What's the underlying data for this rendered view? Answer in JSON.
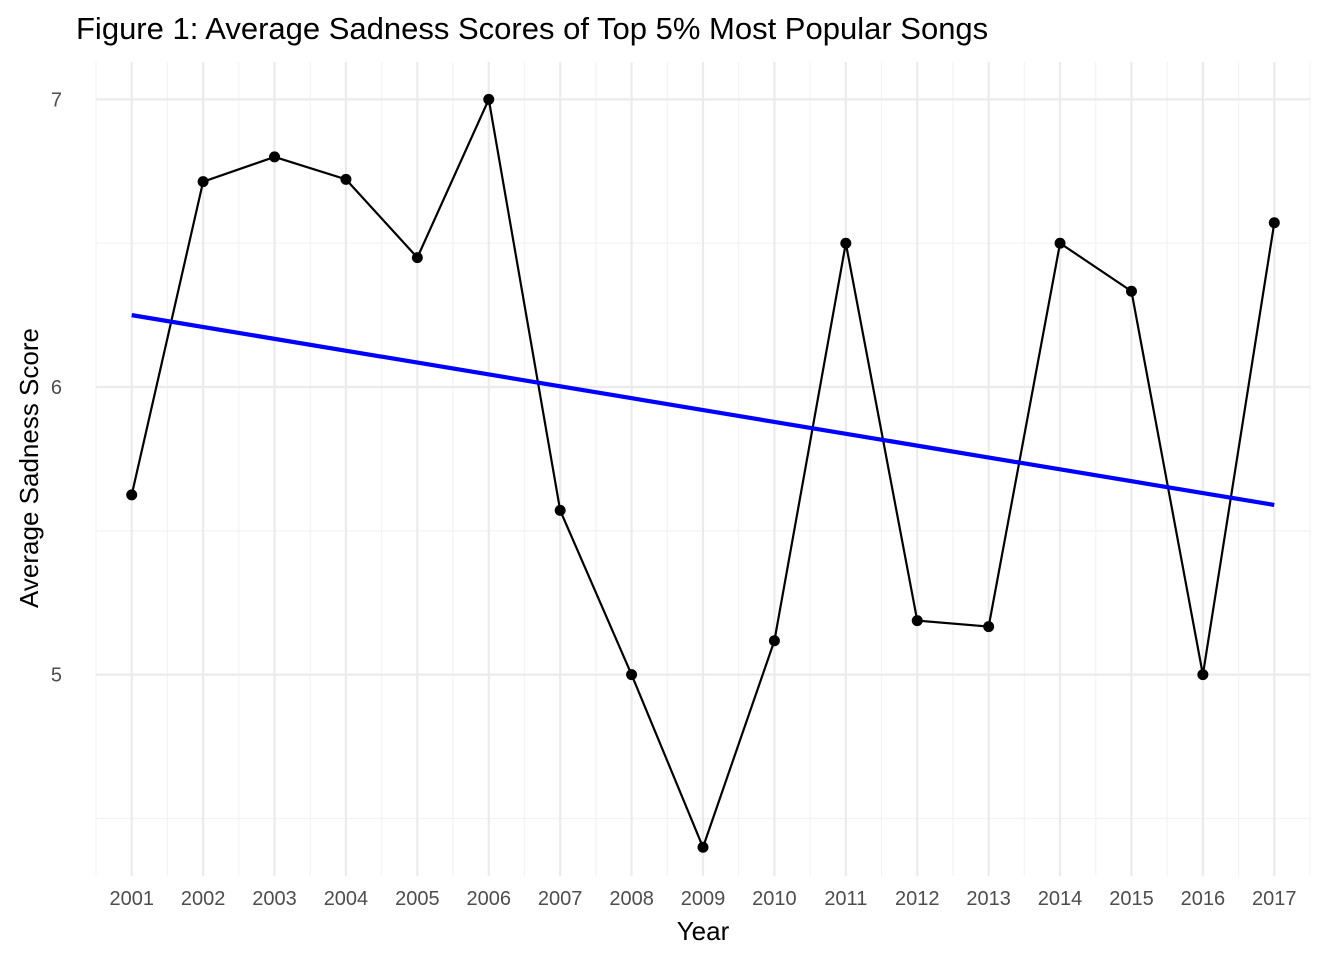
{
  "chart_data": {
    "type": "line",
    "title": "Figure 1: Average Sadness Scores of Top 5% Most Popular Songs",
    "xlabel": "Year",
    "ylabel": "Average Sadness Score",
    "x": [
      2001,
      2002,
      2003,
      2004,
      2005,
      2006,
      2007,
      2008,
      2009,
      2010,
      2011,
      2012,
      2013,
      2014,
      2015,
      2016,
      2017
    ],
    "x_tick_labels": [
      "2001",
      "2002",
      "2003",
      "2004",
      "2005",
      "2006",
      "2007",
      "2008",
      "2009",
      "2010",
      "2011",
      "2012",
      "2013",
      "2014",
      "2015",
      "2016",
      "2017"
    ],
    "y_ticks": [
      5,
      6,
      7
    ],
    "y_tick_labels": [
      "5",
      "6",
      "7"
    ],
    "xlim": [
      2000.5,
      2017.5
    ],
    "ylim": [
      4.3,
      7.13
    ],
    "series": [
      {
        "values": [
          5.625,
          6.714,
          6.8,
          6.722,
          6.45,
          7.0,
          5.571,
          5.0,
          4.4,
          5.118,
          6.5,
          5.188,
          5.167,
          6.5,
          6.333,
          5.0,
          6.571
        ],
        "color": "#000000",
        "markers": true
      }
    ],
    "trendline": {
      "type": "linear",
      "color": "#0000ff",
      "x": [
        2001,
        2017
      ],
      "y": [
        6.25,
        5.59
      ]
    },
    "grid": true,
    "legend": "none"
  }
}
